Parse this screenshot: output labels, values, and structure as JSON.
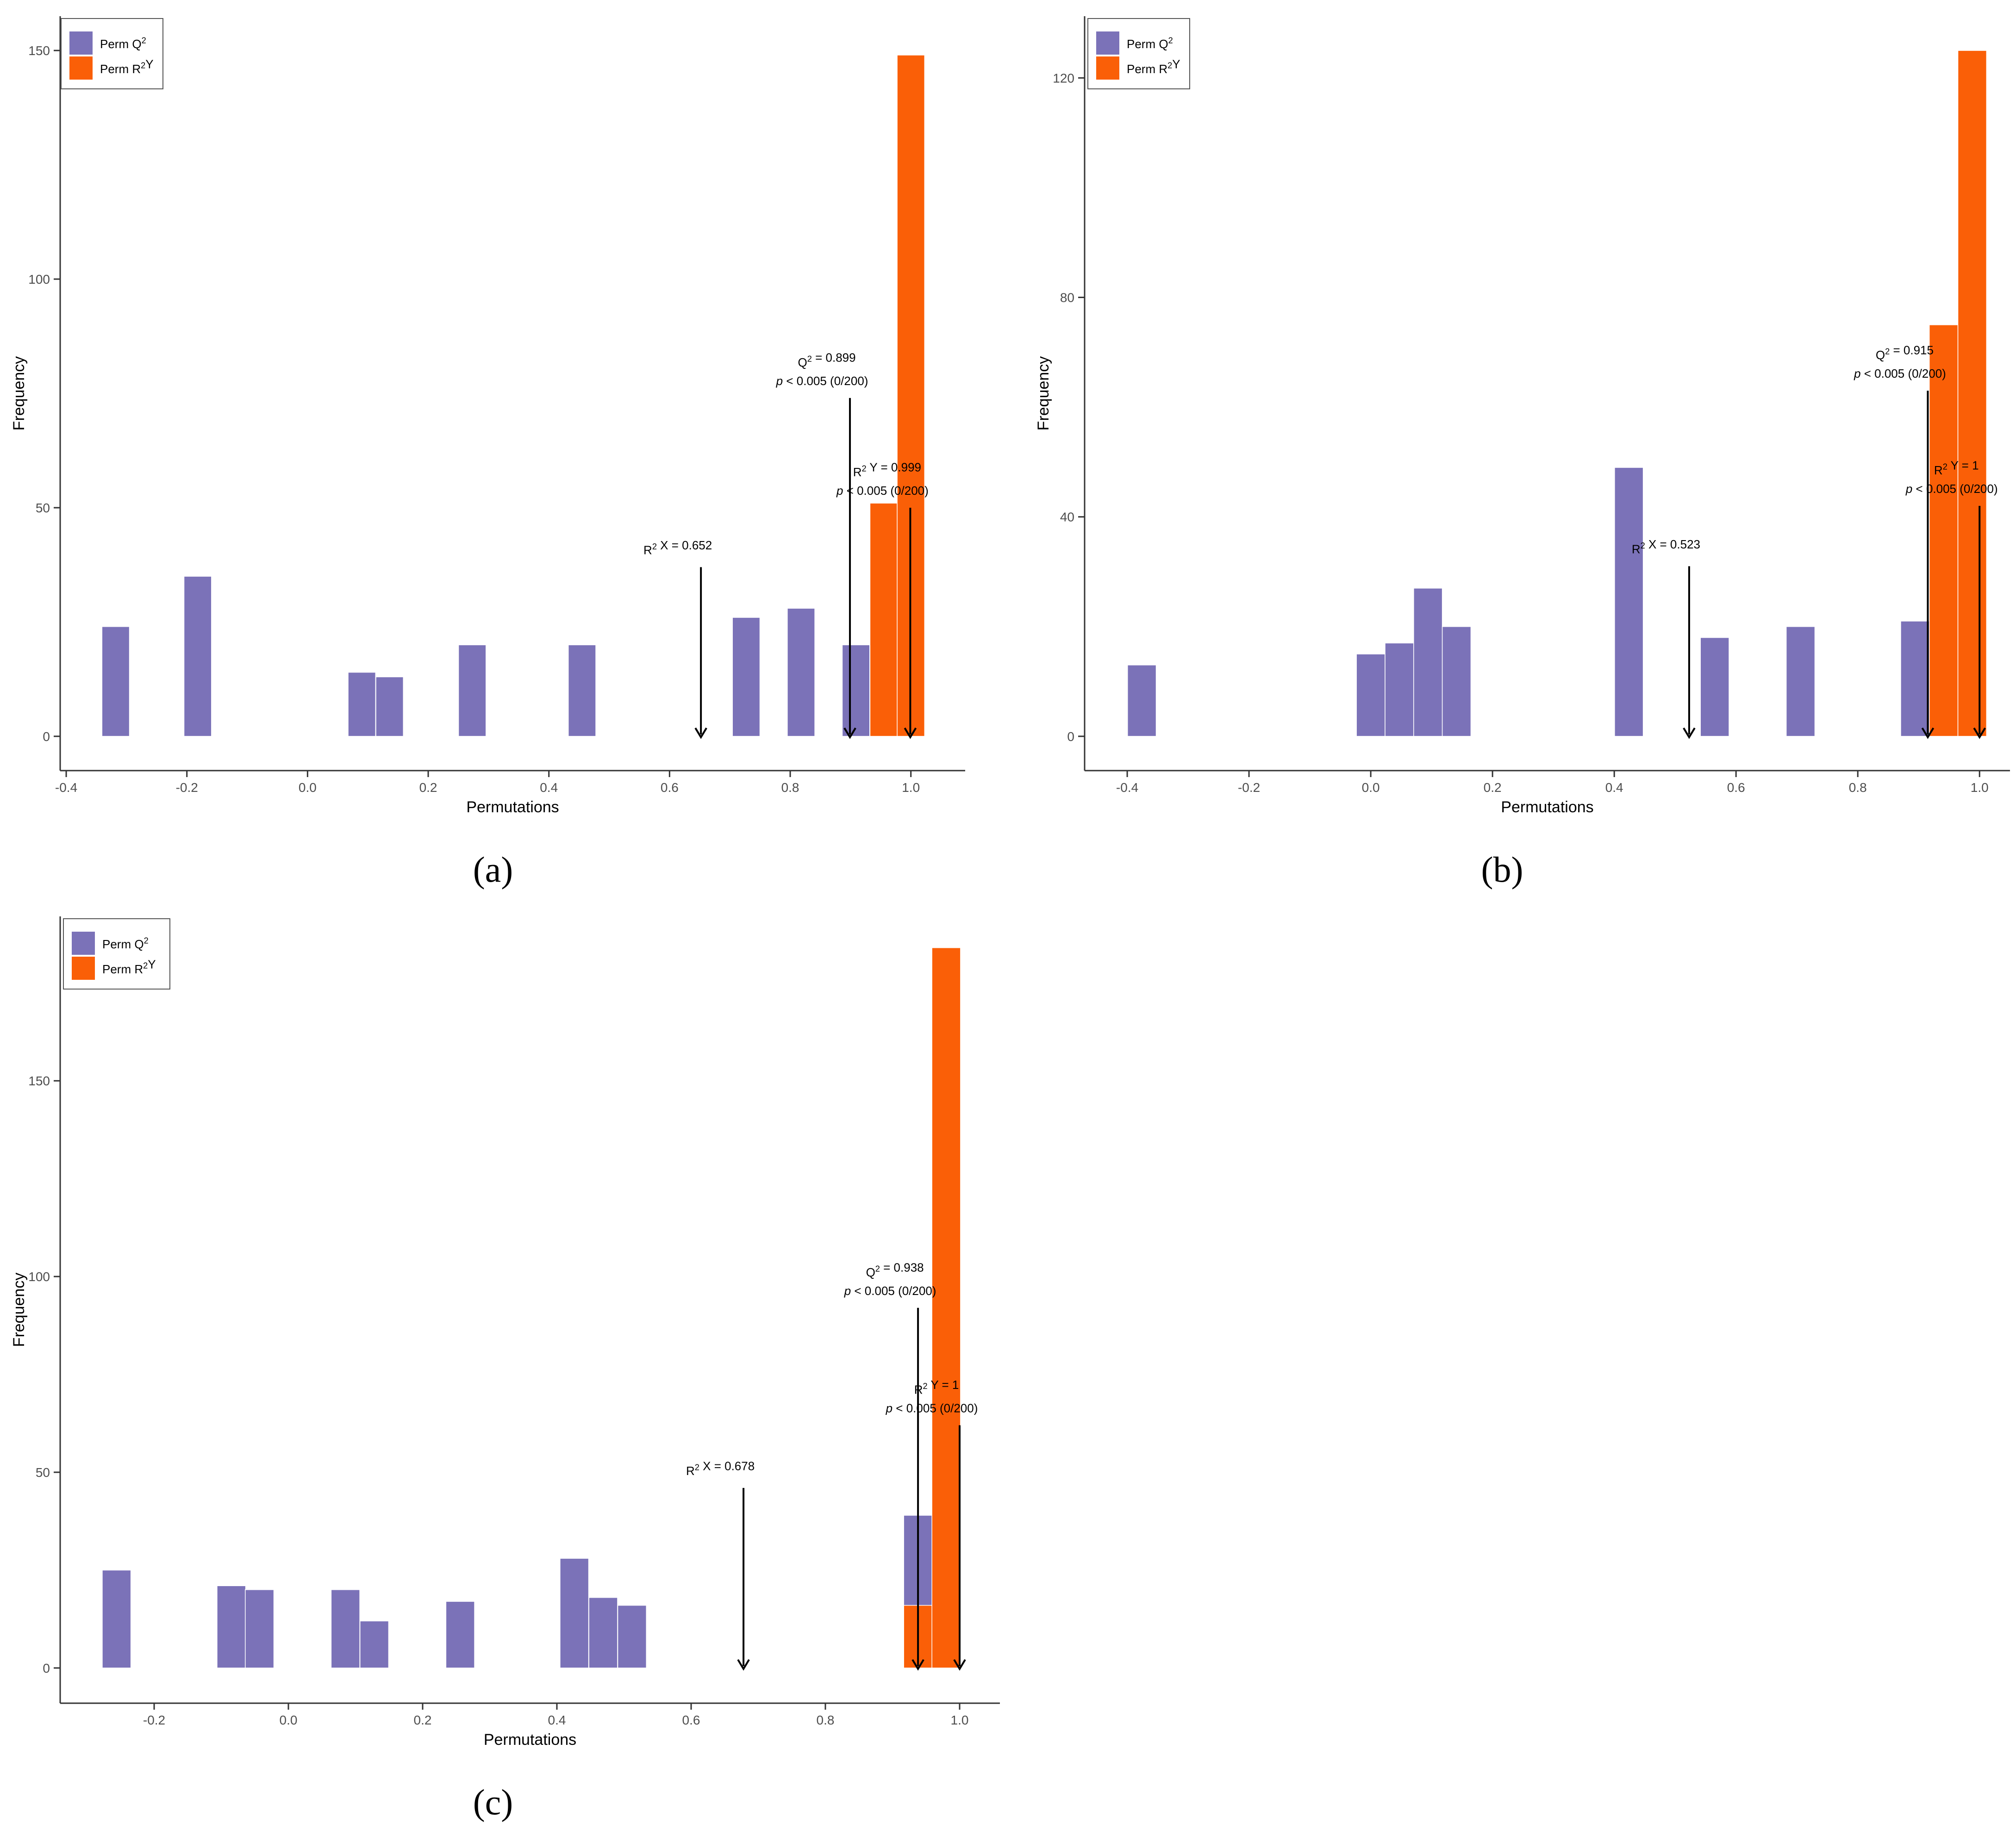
{
  "colors": {
    "q2": "#7b72b8",
    "r2y": "#fa5f07",
    "axis": "#333333",
    "text": "#000000"
  },
  "legend": {
    "q2_label": "Perm Q²",
    "r2y_label": "Perm R²Y"
  },
  "chart_data": [
    {
      "type": "histogram",
      "panel_label": "(a)",
      "xlabel": "Permutations",
      "ylabel": "Frequency",
      "xlim": [
        -0.41,
        1.09
      ],
      "ylim": [
        -7.5,
        157.5
      ],
      "xticks": [
        -0.4,
        -0.2,
        0.0,
        0.2,
        0.4,
        0.6,
        0.8,
        1.0
      ],
      "xtick_labels": [
        "-0.4",
        "-0.2",
        "0.0",
        "0.2",
        "0.4",
        "0.6",
        "0.8",
        "1.0"
      ],
      "yticks": [
        0,
        50,
        100,
        150
      ],
      "ytick_labels": [
        "0",
        "50",
        "100",
        "150"
      ],
      "bin_width": 0.0455,
      "series": [
        {
          "name": "Perm Q²",
          "color_key": "q2",
          "bin_centers": [
            -0.318,
            -0.182,
            0.09,
            0.136,
            0.273,
            0.455,
            0.727,
            0.818,
            0.909
          ],
          "values": [
            24,
            35,
            14,
            13,
            20,
            20,
            26,
            28,
            20
          ]
        },
        {
          "name": "Perm R²Y",
          "color_key": "r2y",
          "bin_centers": [
            0.955,
            1.0
          ],
          "values": [
            51,
            149
          ]
        }
      ],
      "annotations": [
        {
          "x": 0.652,
          "y_top": 37,
          "line1": "R² X = 0.652",
          "line2": ""
        },
        {
          "x": 0.899,
          "y_top": 74,
          "line1": "Q² = 0.899",
          "line2": "p < 0.005 (0/200)"
        },
        {
          "x": 0.999,
          "y_top": 50,
          "line1": "R² Y = 0.999",
          "line2": "p < 0.005 (0/200)"
        }
      ]
    },
    {
      "type": "histogram",
      "panel_label": "(b)",
      "xlabel": "Permutations",
      "ylabel": "Frequency",
      "xlim": [
        -0.47,
        1.05
      ],
      "ylim": [
        -6.25,
        131.25
      ],
      "xticks": [
        -0.4,
        -0.2,
        0.0,
        0.2,
        0.4,
        0.6,
        0.8,
        1.0
      ],
      "xtick_labels": [
        "-0.4",
        "-0.2",
        "0.0",
        "0.2",
        "0.4",
        "0.6",
        "0.8",
        "1.0"
      ],
      "yticks": [
        0,
        40,
        80,
        120
      ],
      "ytick_labels": [
        "0",
        "40",
        "80",
        "120"
      ],
      "bin_width": 0.047,
      "series": [
        {
          "name": "Perm Q²",
          "color_key": "q2",
          "bin_centers": [
            -0.376,
            0.0,
            0.047,
            0.094,
            0.141,
            0.424,
            0.565,
            0.706,
            0.894
          ],
          "values": [
            13,
            15,
            17,
            27,
            20,
            49,
            18,
            20,
            21
          ]
        },
        {
          "name": "Perm R²Y",
          "color_key": "r2y",
          "bin_centers": [
            0.941,
            0.988
          ],
          "values": [
            75,
            125
          ]
        }
      ],
      "annotations": [
        {
          "x": 0.523,
          "y_top": 31,
          "line1": "R² X = 0.523",
          "line2": ""
        },
        {
          "x": 0.915,
          "y_top": 63,
          "line1": "Q² = 0.915",
          "line2": "p < 0.005 (0/200)"
        },
        {
          "x": 1.0,
          "y_top": 42,
          "line1": "R² Y = 1",
          "line2": "p < 0.005 (0/200)"
        }
      ]
    },
    {
      "type": "histogram",
      "panel_label": "(c)",
      "xlabel": "Permutations",
      "ylabel": "Frequency",
      "xlim": [
        -0.34,
        1.06
      ],
      "ylim": [
        -9,
        192
      ],
      "xticks": [
        -0.2,
        0.0,
        0.2,
        0.4,
        0.6,
        0.8,
        1.0
      ],
      "xtick_labels": [
        "-0.2",
        "0.0",
        "0.2",
        "0.4",
        "0.6",
        "0.8",
        "1.0"
      ],
      "yticks": [
        0,
        50,
        100,
        150
      ],
      "ytick_labels": [
        "0",
        "50",
        "100",
        "150"
      ],
      "bin_width": 0.0426,
      "series": [
        {
          "name": "Perm Q²",
          "color_key": "q2",
          "bin_centers": [
            -0.256,
            -0.085,
            -0.043,
            0.085,
            0.128,
            0.256,
            0.426,
            0.469,
            0.512,
            0.938
          ],
          "values": [
            25,
            21,
            20,
            20,
            12,
            17,
            28,
            18,
            16,
            39
          ]
        },
        {
          "name": "Perm R²Y",
          "color_key": "r2y",
          "bin_centers": [
            0.938,
            0.98
          ],
          "values": [
            16,
            184
          ]
        }
      ],
      "annotations": [
        {
          "x": 0.678,
          "y_top": 46,
          "line1": "R² X = 0.678",
          "line2": ""
        },
        {
          "x": 0.938,
          "y_top": 92,
          "line1": "Q² = 0.938",
          "line2": "p < 0.005 (0/200)"
        },
        {
          "x": 1.0,
          "y_top": 62,
          "line1": "R² Y = 1",
          "line2": "p < 0.005 (0/200)"
        }
      ]
    }
  ]
}
